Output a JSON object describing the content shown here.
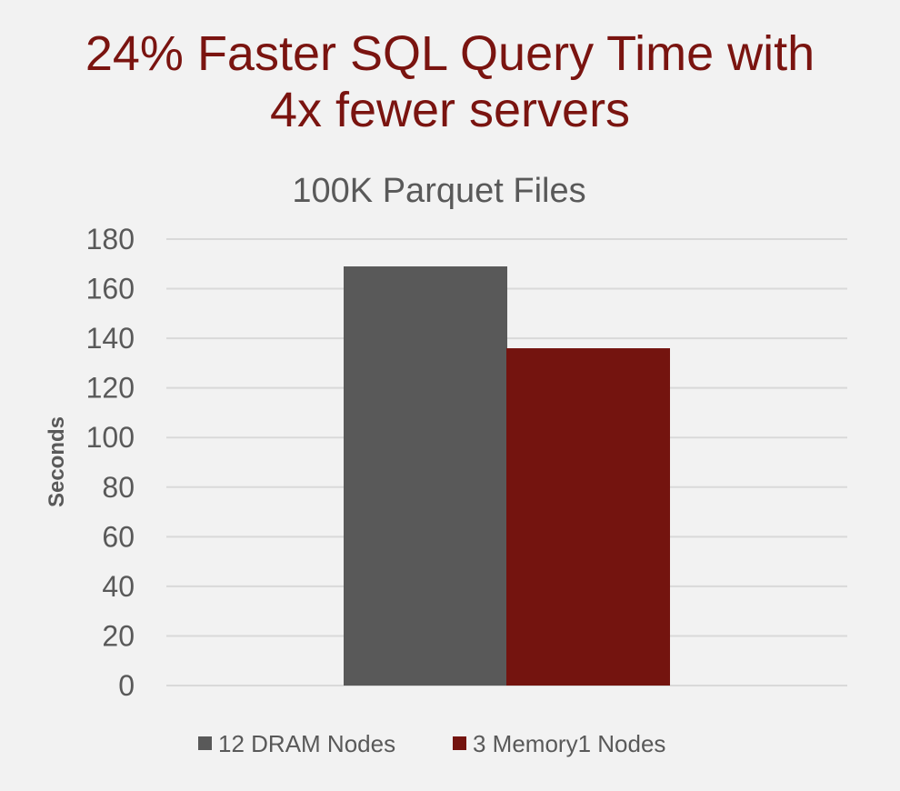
{
  "headline": [
    "24% Faster SQL Query Time with",
    "4x fewer servers"
  ],
  "chart_data": {
    "type": "bar",
    "title": "100K Parquet Files",
    "xlabel": "",
    "ylabel": "Seconds",
    "ylim": [
      0,
      180
    ],
    "yticks": [
      0,
      20,
      40,
      60,
      80,
      100,
      120,
      140,
      160,
      180
    ],
    "grid": true,
    "legend_placement": "bottom",
    "categories": [
      ""
    ],
    "series": [
      {
        "name": "12 DRAM Nodes",
        "values": [
          169
        ],
        "color": "#595959"
      },
      {
        "name": "3 Memory1 Nodes",
        "values": [
          136
        ],
        "color": "#74140f"
      }
    ]
  }
}
